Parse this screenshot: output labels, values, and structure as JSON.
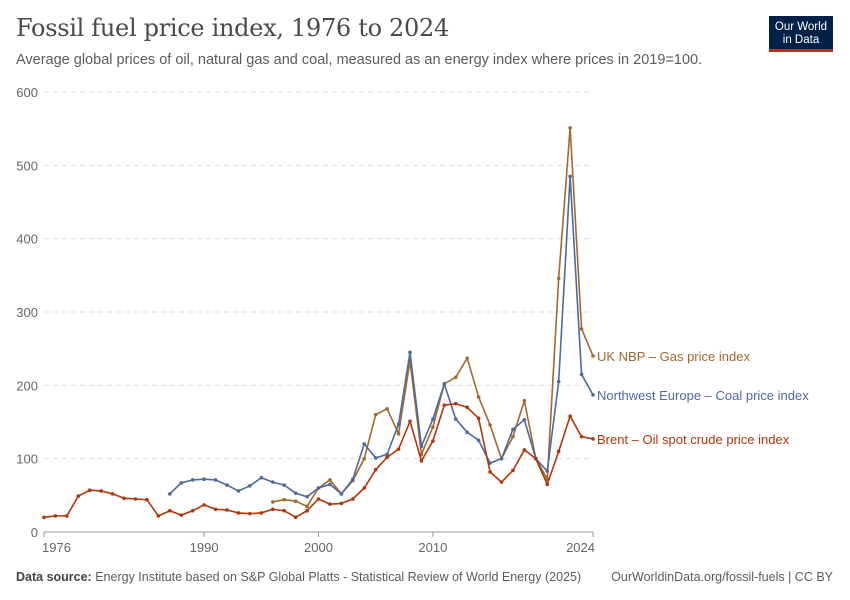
{
  "header": {
    "title": "Fossil fuel price index, 1976 to 2024",
    "subtitle": "Average global prices of oil, natural gas and coal, measured as an energy index where prices in 2019=100.",
    "logo_text": "Our World in Data"
  },
  "footer": {
    "source_label": "Data source:",
    "source": "Energy Institute based on S&P Global Platts - Statistical Review of World Energy (2025)",
    "link": "OurWorldinData.org/fossil-fuels | CC BY"
  },
  "chart_data": {
    "type": "line",
    "title": "Fossil fuel price index, 1976 to 2024",
    "xlim": [
      1976,
      2024
    ],
    "ylim": [
      0,
      600
    ],
    "yticks": [
      0,
      100,
      200,
      300,
      400,
      500,
      600
    ],
    "xticks": [
      1976,
      1990,
      2000,
      2010,
      2024
    ],
    "grid": "horizontal dashed",
    "legend": "line-end labels",
    "series": [
      {
        "name": "UK NBP – Gas price index",
        "color": "#a2692f",
        "start": 1996,
        "values": [
          41,
          44,
          42,
          35,
          60,
          71,
          52,
          70,
          100,
          160,
          168,
          134,
          233,
          106,
          143,
          202,
          211,
          237,
          184,
          146,
          100,
          130,
          179,
          100,
          72,
          346,
          551,
          277,
          240
        ]
      },
      {
        "name": "Northwest Europe – Coal price index",
        "color": "#4c6a9c",
        "start": 1987,
        "values": [
          52,
          67,
          71,
          72,
          71,
          64,
          56,
          63,
          74,
          68,
          64,
          53,
          48,
          60,
          65,
          52,
          72,
          120,
          101,
          106,
          147,
          245,
          117,
          154,
          202,
          154,
          136,
          125,
          94,
          100,
          140,
          153,
          100,
          83,
          205,
          485,
          215,
          187
        ]
      },
      {
        "name": "Brent – Oil spot crude price index",
        "color": "#b13507",
        "start": 1976,
        "values": [
          20,
          22,
          22,
          49,
          57,
          56,
          52,
          46,
          45,
          44,
          22,
          29,
          23,
          29,
          37,
          31,
          30,
          26,
          25,
          26,
          31,
          29,
          20,
          29,
          45,
          38,
          39,
          45,
          60,
          85,
          102,
          113,
          151,
          97,
          124,
          173,
          175,
          170,
          155,
          82,
          68,
          84,
          112,
          100,
          65,
          110,
          158,
          130,
          127
        ]
      }
    ]
  }
}
